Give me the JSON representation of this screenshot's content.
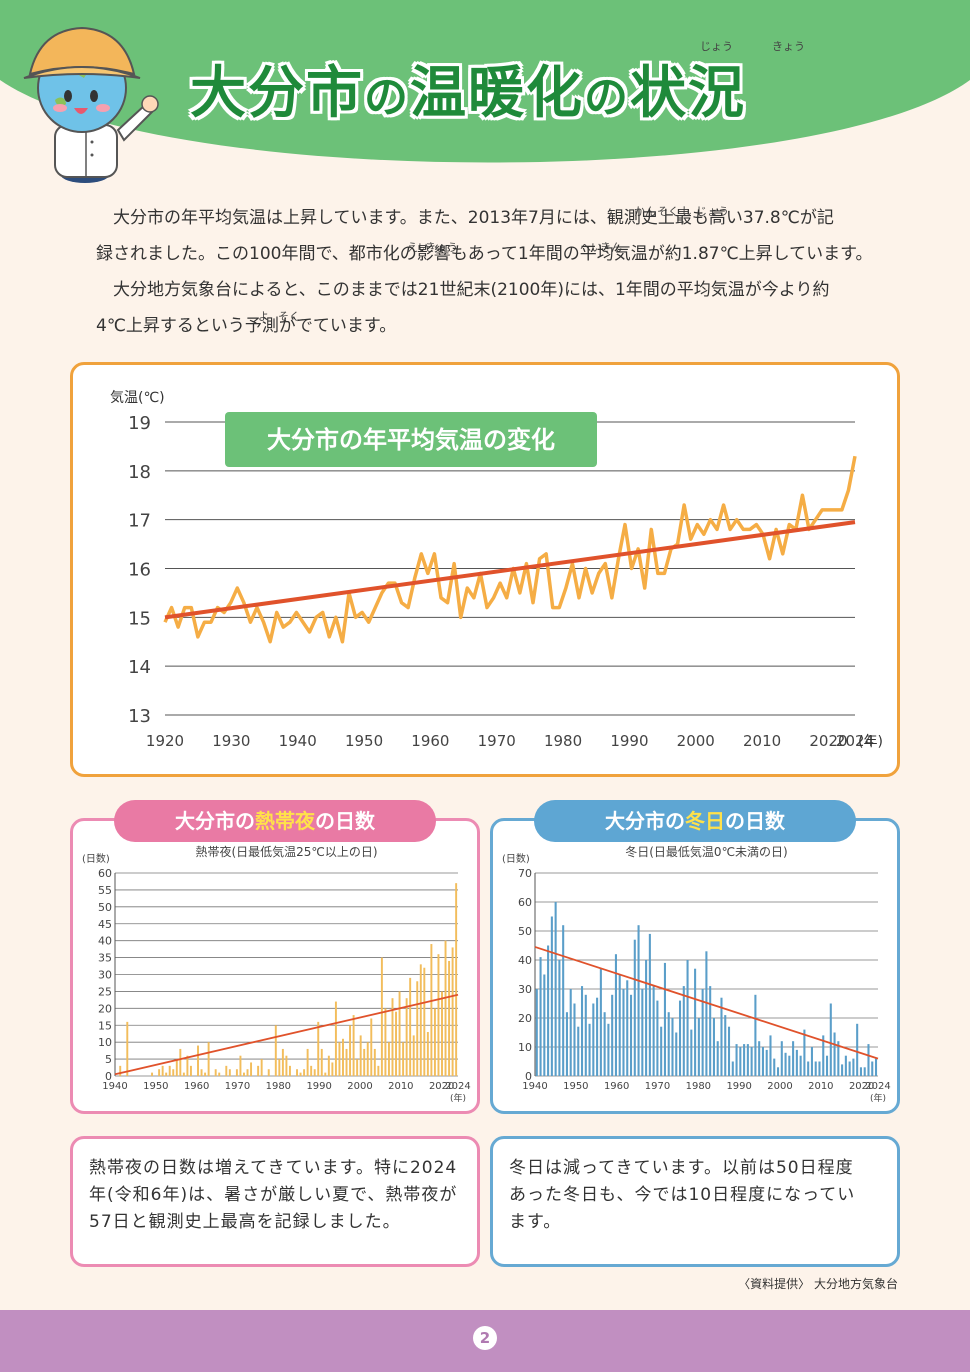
{
  "header": {
    "title_part1": "大分市",
    "title_no1": "の",
    "title_part2": "温暖化",
    "title_no2": "の",
    "title_part3": "状況",
    "ruby_jou": "じょう",
    "ruby_kyou": "きょう"
  },
  "intro": {
    "line1_a": "大分市の年平均気温は上昇しています。また、2013年7月には、",
    "line1_b": "観測史上最も高い37.8℃が記",
    "line2": "録されました。この100年間で、都市化の影響もあって1年間の平均気温が約1.87℃上昇しています。",
    "line3": "大分地方気象台によると、このままでは21世紀末(2100年)には、1年間の平均気温が今より約",
    "line4": "4℃上昇するという予測がでています。",
    "ruby_kan": "かん",
    "ruby_soku": "そく",
    "ruby_shi": "し",
    "ruby_jou": "じょう",
    "ruby_ei": "えい",
    "ruby_kyou": "きょう",
    "ruby_hei": "へい",
    "ruby_kin": "きん",
    "ruby_yo": "よ",
    "ruby_soku2": "そく"
  },
  "colors": {
    "green": "#1f8a3a",
    "orange_line": "#f5ad45",
    "trend_red": "#e0522b",
    "pink": "#e97aa4",
    "blue": "#5ea6d3",
    "footer": "#c18fc1"
  },
  "chart_data": [
    {
      "type": "line",
      "title": "大分市の年平均気温の変化",
      "ylabel": "気温(℃)",
      "xlabel": "(年)",
      "ylim": [
        13,
        19
      ],
      "xlim": [
        1920,
        2024
      ],
      "yticks": [
        "13",
        "14",
        "15",
        "16",
        "17",
        "18",
        "19"
      ],
      "xticks": [
        "1920",
        "1930",
        "1940",
        "1950",
        "1960",
        "1970",
        "1980",
        "1990",
        "2000",
        "2010",
        "2020",
        "2024"
      ],
      "grid": true,
      "series": [
        {
          "name": "年平均気温",
          "x_start": 1920,
          "values": [
            14.9,
            15.2,
            14.8,
            15.2,
            15.2,
            14.6,
            14.9,
            14.9,
            15.2,
            15.1,
            15.3,
            15.6,
            15.3,
            14.9,
            15.2,
            14.9,
            14.5,
            15.1,
            14.8,
            14.9,
            15.1,
            14.9,
            14.7,
            15.0,
            15.1,
            14.6,
            15.0,
            14.5,
            15.5,
            15.0,
            15.1,
            14.9,
            15.2,
            15.5,
            15.7,
            15.7,
            15.3,
            15.2,
            15.8,
            16.3,
            15.9,
            16.3,
            15.4,
            15.3,
            16.1,
            15.0,
            15.6,
            15.4,
            15.9,
            15.2,
            15.4,
            15.7,
            15.4,
            16.0,
            15.5,
            16.1,
            15.3,
            16.2,
            16.3,
            15.2,
            15.2,
            15.6,
            16.1,
            15.4,
            16.0,
            15.5,
            15.9,
            16.1,
            15.4,
            16.2,
            16.9,
            16.0,
            16.4,
            15.6,
            16.8,
            15.9,
            15.9,
            16.4,
            16.5,
            17.3,
            16.6,
            16.9,
            16.7,
            17.0,
            16.8,
            17.3,
            16.8,
            17.0,
            16.8,
            16.8,
            16.9,
            16.7,
            16.2,
            16.8,
            16.3,
            16.9,
            16.8,
            17.5,
            16.8,
            17.0,
            17.2,
            17.2,
            17.2,
            17.2,
            17.6,
            18.3
          ]
        },
        {
          "name": "トレンド",
          "x": [
            1920,
            2024
          ],
          "values": [
            15.0,
            16.95
          ]
        }
      ]
    },
    {
      "type": "bar",
      "title": "熱帯夜(日最低気温25℃以上の日)",
      "ylabel": "(日数)",
      "xlabel": "(年)",
      "ylim": [
        0,
        60
      ],
      "xlim": [
        1940,
        2024
      ],
      "yticks": [
        "0",
        "5",
        "10",
        "15",
        "20",
        "25",
        "30",
        "35",
        "40",
        "45",
        "50",
        "55",
        "60"
      ],
      "xticks": [
        "1940",
        "1950",
        "1960",
        "1970",
        "1980",
        "1990",
        "2000",
        "2010",
        "2020",
        "2024"
      ],
      "x_start": 1940,
      "values": [
        0,
        3,
        0,
        16,
        0,
        0,
        0,
        0,
        0,
        0,
        1,
        0,
        2,
        3,
        1,
        3,
        2,
        5,
        8,
        1,
        6,
        3,
        0,
        9,
        2,
        1,
        10,
        0,
        2,
        1,
        0,
        3,
        2,
        0,
        2,
        6,
        1,
        2,
        4,
        0,
        3,
        5,
        0,
        2,
        0,
        15,
        5,
        8,
        6,
        3,
        0,
        2,
        1,
        2,
        8,
        3,
        2,
        16,
        8,
        1,
        6,
        4,
        22,
        10,
        11,
        8,
        15,
        18,
        5,
        12,
        8,
        10,
        17,
        8,
        3,
        35,
        20,
        10,
        23,
        19,
        25,
        10,
        23,
        29,
        12,
        28,
        33,
        32,
        13,
        39,
        20,
        36,
        25,
        40,
        34,
        38,
        57
      ],
      "trend": {
        "x": [
          1940,
          2024
        ],
        "values": [
          0.5,
          24
        ]
      },
      "grid": true
    },
    {
      "type": "bar",
      "title": "冬日(日最低気温0℃未満の日)",
      "ylabel": "(日数)",
      "xlabel": "(年)",
      "ylim": [
        0,
        70
      ],
      "xlim": [
        1940,
        2024
      ],
      "yticks": [
        "0",
        "10",
        "20",
        "30",
        "40",
        "50",
        "60",
        "70"
      ],
      "xticks": [
        "1940",
        "1950",
        "1960",
        "1970",
        "1980",
        "1990",
        "2000",
        "2010",
        "2020",
        "2024"
      ],
      "x_start": 1940,
      "values": [
        30,
        41,
        35,
        45,
        55,
        60,
        40,
        52,
        22,
        30,
        25,
        17,
        31,
        28,
        18,
        25,
        27,
        37,
        22,
        18,
        28,
        42,
        35,
        30,
        33,
        28,
        47,
        52,
        30,
        40,
        49,
        31,
        26,
        17,
        39,
        22,
        20,
        15,
        26,
        31,
        40,
        16,
        37,
        20,
        30,
        43,
        31,
        20,
        12,
        27,
        21,
        17,
        5,
        11,
        10,
        11,
        11,
        10,
        28,
        12,
        10,
        9,
        14,
        6,
        3,
        12,
        8,
        7,
        12,
        9,
        7,
        16,
        5,
        10,
        5,
        5,
        14,
        7,
        25,
        15,
        12,
        4,
        7,
        5,
        6,
        18,
        3,
        3,
        11,
        5,
        6
      ],
      "trend": {
        "x": [
          1940,
          2024
        ],
        "values": [
          44.5,
          6
        ]
      },
      "grid": true
    }
  ],
  "panels": {
    "big_title": "大分市の年平均気温の変化",
    "pink_title_a": "大分市の",
    "pink_title_hl": "熱帯夜",
    "pink_title_b": "の日数",
    "blue_title_a": "大分市の",
    "blue_title_hl": "冬日",
    "blue_title_b": "の日数"
  },
  "notes": {
    "pink_line1": "熱帯夜の日数は増えてきています。特に2024",
    "pink_line2": "年(令和6年)は、暑さが厳しい夏で、熱帯夜が",
    "pink_line3": "57日と観測史上最高を記録しました。",
    "blue_line1": "冬日は減ってきています。以前は50日程度",
    "blue_line2": "あった冬日も、今では10日程度になってい",
    "blue_line3": "ます。"
  },
  "footer": {
    "source": "〈資料提供〉 大分地方気象台",
    "page_number": "2"
  }
}
